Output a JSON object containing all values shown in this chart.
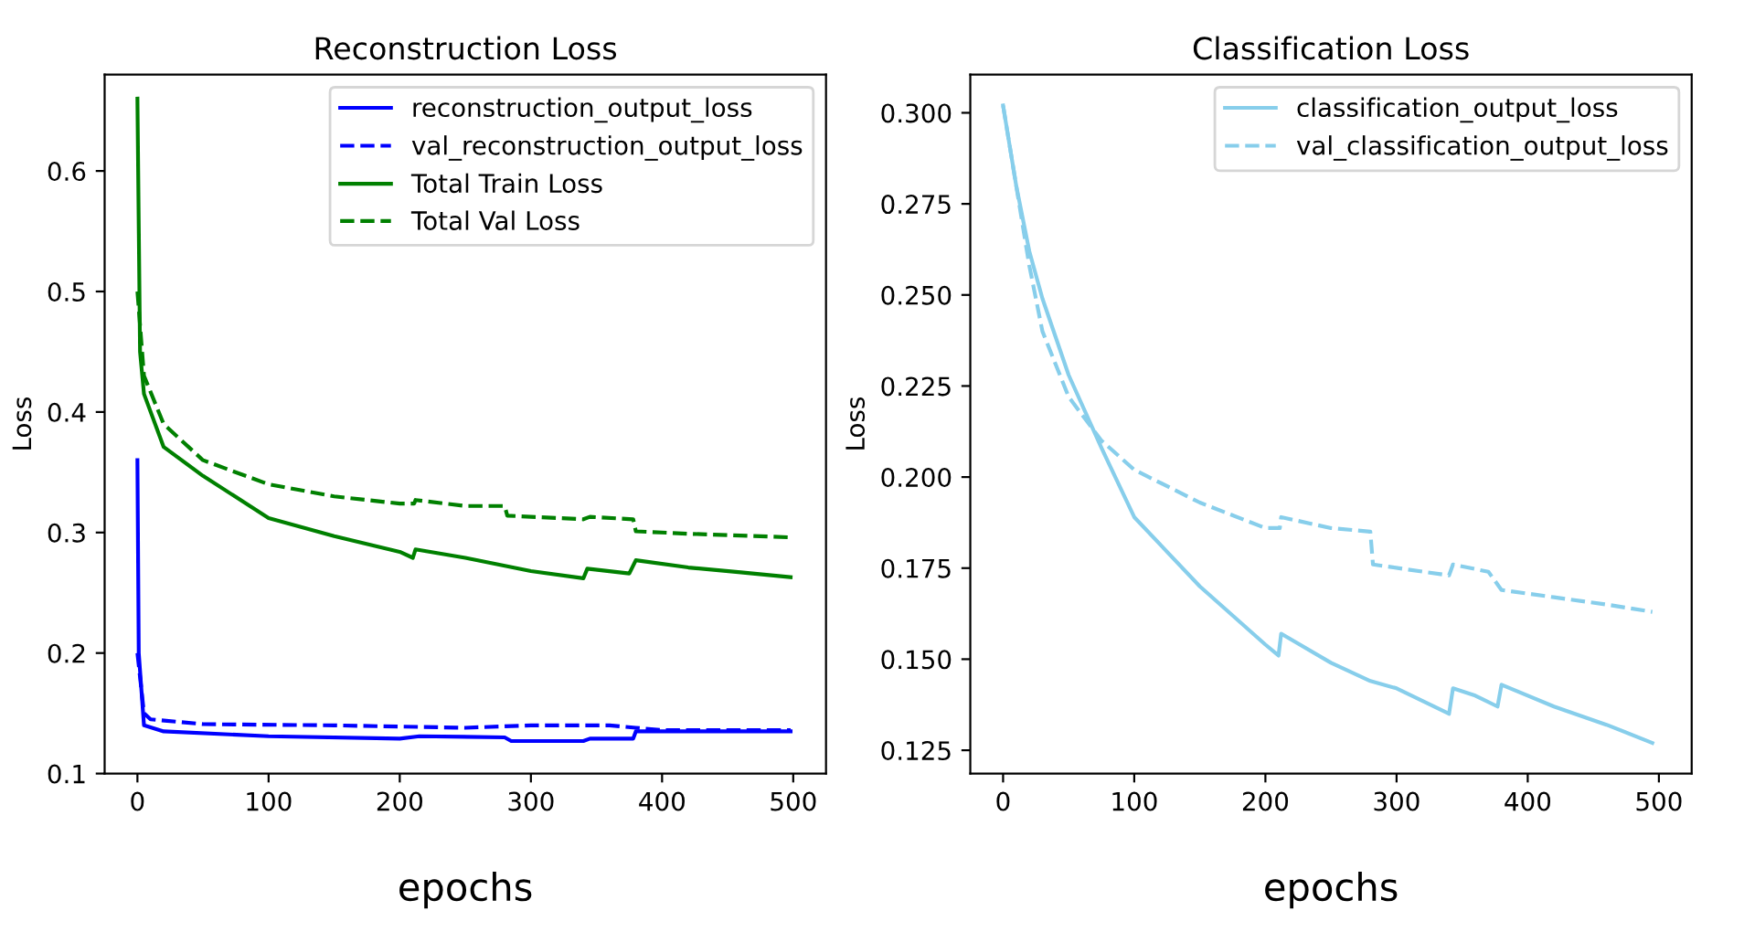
{
  "chart_data": [
    {
      "type": "line",
      "title": "Reconstruction Loss",
      "xlabel": "epochs",
      "ylabel": "Loss",
      "xlim": [
        -25,
        525
      ],
      "ylim": [
        0.1,
        0.68
      ],
      "xticks": [
        0,
        100,
        200,
        300,
        400,
        500
      ],
      "yticks": [
        0.1,
        0.2,
        0.3,
        0.4,
        0.5,
        0.6
      ],
      "legend": "top right",
      "grid": false,
      "series": [
        {
          "name": "reconstruction_output_loss",
          "color": "#0000ff",
          "line_style": "solid",
          "x": [
            0,
            1,
            5,
            20,
            100,
            200,
            215,
            280,
            285,
            340,
            345,
            378,
            380,
            498
          ],
          "values": [
            0.36,
            0.2,
            0.14,
            0.135,
            0.131,
            0.129,
            0.131,
            0.13,
            0.127,
            0.127,
            0.129,
            0.129,
            0.135,
            0.135
          ]
        },
        {
          "name": "val_reconstruction_output_loss",
          "color": "#0000ff",
          "line_style": "dashed",
          "x": [
            0,
            5,
            10,
            50,
            150,
            250,
            300,
            360,
            380,
            400,
            498
          ],
          "values": [
            0.2,
            0.15,
            0.145,
            0.141,
            0.14,
            0.138,
            0.14,
            0.14,
            0.138,
            0.136,
            0.136
          ]
        },
        {
          "name": "Total Train Loss",
          "color": "#008000",
          "line_style": "solid",
          "x": [
            0,
            2,
            5,
            20,
            50,
            100,
            150,
            200,
            210,
            212,
            250,
            300,
            340,
            343,
            375,
            380,
            420,
            460,
            498
          ],
          "values": [
            0.66,
            0.45,
            0.415,
            0.371,
            0.347,
            0.312,
            0.297,
            0.284,
            0.279,
            0.286,
            0.279,
            0.268,
            0.262,
            0.27,
            0.266,
            0.277,
            0.271,
            0.267,
            0.263
          ]
        },
        {
          "name": "Total Val Loss",
          "color": "#008000",
          "line_style": "dashed",
          "x": [
            0,
            5,
            20,
            50,
            100,
            150,
            200,
            211,
            212,
            250,
            280,
            282,
            340,
            345,
            378,
            380,
            420,
            498
          ],
          "values": [
            0.5,
            0.43,
            0.39,
            0.36,
            0.34,
            0.33,
            0.324,
            0.324,
            0.327,
            0.322,
            0.322,
            0.314,
            0.311,
            0.313,
            0.311,
            0.301,
            0.299,
            0.296
          ]
        }
      ]
    },
    {
      "type": "line",
      "title": "Classification Loss",
      "xlabel": "epochs",
      "ylabel": "Loss",
      "xlim": [
        -25,
        525
      ],
      "ylim": [
        0.1186,
        0.3105
      ],
      "xticks": [
        0,
        100,
        200,
        300,
        400,
        500
      ],
      "yticks": [
        {
          "value": 0.125,
          "label": "0.125"
        },
        {
          "value": 0.15,
          "label": "0.150"
        },
        {
          "value": 0.175,
          "label": "0.175"
        },
        {
          "value": 0.2,
          "label": "0.200"
        },
        {
          "value": 0.225,
          "label": "0.225"
        },
        {
          "value": 0.25,
          "label": "0.250"
        },
        {
          "value": 0.275,
          "label": "0.275"
        },
        {
          "value": 0.3,
          "label": "0.300"
        }
      ],
      "legend": "top right",
      "grid": false,
      "series": [
        {
          "name": "classification_output_loss",
          "color": "#87ceeb",
          "line_style": "solid",
          "x": [
            0,
            10,
            20,
            30,
            50,
            75,
            100,
            150,
            200,
            210,
            212,
            250,
            280,
            300,
            340,
            343,
            360,
            377,
            380,
            420,
            460,
            495
          ],
          "values": [
            0.302,
            0.28,
            0.262,
            0.249,
            0.228,
            0.208,
            0.189,
            0.17,
            0.154,
            0.151,
            0.157,
            0.149,
            0.144,
            0.142,
            0.135,
            0.142,
            0.14,
            0.137,
            0.143,
            0.137,
            0.132,
            0.127
          ]
        },
        {
          "name": "val_classification_output_loss",
          "color": "#87ceeb",
          "line_style": "dashed",
          "x": [
            0,
            10,
            20,
            30,
            50,
            75,
            100,
            150,
            200,
            211,
            212,
            250,
            280,
            282,
            340,
            343,
            370,
            380,
            420,
            460,
            495
          ],
          "values": [
            0.302,
            0.28,
            0.258,
            0.24,
            0.222,
            0.21,
            0.202,
            0.193,
            0.186,
            0.186,
            0.189,
            0.186,
            0.185,
            0.176,
            0.173,
            0.176,
            0.174,
            0.169,
            0.167,
            0.165,
            0.163
          ]
        }
      ]
    }
  ]
}
